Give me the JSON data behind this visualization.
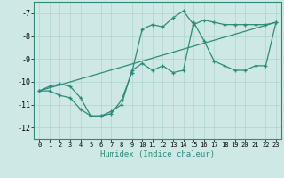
{
  "xlabel": "Humidex (Indice chaleur)",
  "bg_color": "#cde8e5",
  "line_color": "#2e8b7a",
  "grid_color": "#b0d5d0",
  "xlim": [
    -0.5,
    23.5
  ],
  "ylim": [
    -12.5,
    -6.5
  ],
  "yticks": [
    -12,
    -11,
    -10,
    -9,
    -8,
    -7
  ],
  "xticks": [
    0,
    1,
    2,
    3,
    4,
    5,
    6,
    7,
    8,
    9,
    10,
    11,
    12,
    13,
    14,
    15,
    16,
    17,
    18,
    19,
    20,
    21,
    22,
    23
  ],
  "line1_x": [
    0,
    1,
    2,
    3,
    4,
    5,
    6,
    7,
    8,
    9,
    10,
    11,
    12,
    13,
    14,
    15,
    16,
    17,
    18,
    19,
    20,
    21,
    22,
    23
  ],
  "line1_y": [
    -10.4,
    -10.4,
    -10.6,
    -10.7,
    -11.2,
    -11.5,
    -11.5,
    -11.4,
    -10.8,
    -9.6,
    -7.7,
    -7.5,
    -7.6,
    -7.2,
    -6.9,
    -7.5,
    -7.3,
    -7.4,
    -7.5,
    -7.5,
    -7.5,
    -7.5,
    -7.5,
    -7.4
  ],
  "line2_x": [
    0,
    1,
    2,
    3,
    4,
    5,
    6,
    7,
    8,
    9,
    10,
    11,
    12,
    13,
    14,
    15,
    16,
    17,
    18,
    19,
    20,
    21,
    22,
    23
  ],
  "line2_y": [
    -10.4,
    -10.2,
    -10.1,
    -10.2,
    -10.7,
    -11.5,
    -11.5,
    -11.3,
    -11.0,
    -9.5,
    -9.2,
    -9.5,
    -9.3,
    -9.6,
    -9.5,
    -7.4,
    -8.2,
    -9.1,
    -9.3,
    -9.5,
    -9.5,
    -9.3,
    -9.3,
    -7.4
  ],
  "line3_x": [
    0,
    23
  ],
  "line3_y": [
    -10.4,
    -7.4
  ]
}
